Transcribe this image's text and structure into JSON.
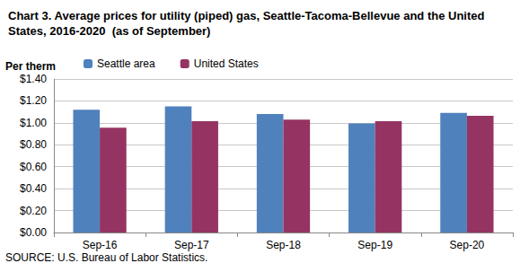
{
  "chart_data": {
    "type": "bar",
    "title": "Chart 3. Average prices for utility (piped) gas, Seattle-Tacoma-Bellevue and the United States, 2016-2020  (as of September)",
    "ylabel": "Per therm",
    "annotations": [
      "SOURCE: U.S. Bureau of Labor Statistics."
    ],
    "categories": [
      "Sep-16",
      "Sep-17",
      "Sep-18",
      "Sep-19",
      "Sep-20"
    ],
    "series": [
      {
        "name": "Seattle area",
        "color": "#4f81bd",
        "values": [
          1.12,
          1.15,
          1.08,
          0.995,
          1.09
        ]
      },
      {
        "name": "United States",
        "color": "#953462",
        "values": [
          0.955,
          1.015,
          1.03,
          1.015,
          1.065
        ]
      }
    ],
    "ylim": [
      0,
      1.4
    ],
    "yticks": [
      {
        "value": 0,
        "label": "$0.00"
      },
      {
        "value": 0.2,
        "label": "$0.20"
      },
      {
        "value": 0.4,
        "label": "$0.40"
      },
      {
        "value": 0.6,
        "label": "$0.60"
      },
      {
        "value": 0.8,
        "label": "$0.80"
      },
      {
        "value": 1.0,
        "label": "$1.00"
      },
      {
        "value": 1.2,
        "label": "$1.20"
      },
      {
        "value": 1.4,
        "label": "$1.40"
      }
    ],
    "grid": true,
    "legend": "top-left",
    "data_labels": false
  }
}
